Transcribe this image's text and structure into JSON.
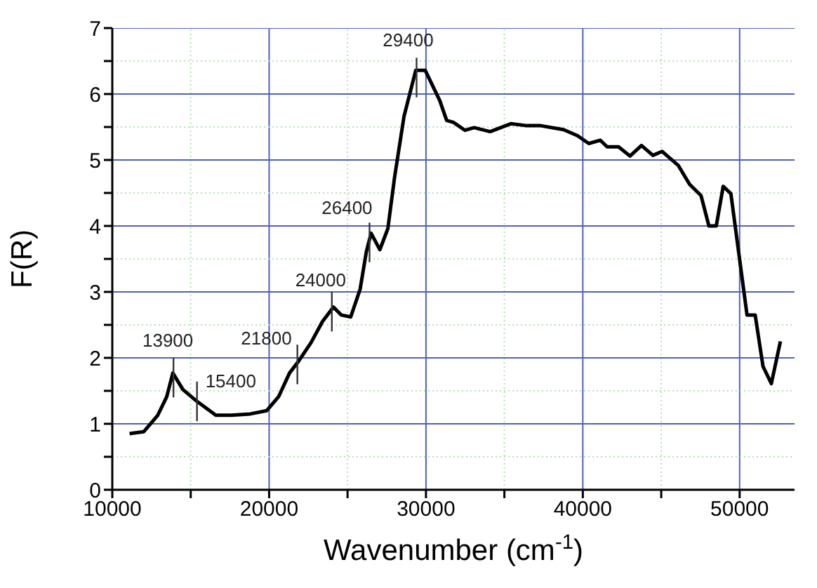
{
  "chart_data": {
    "type": "line",
    "xlabel": "Wavenumber (cm$^{-1}$)",
    "ylabel": "F(R)",
    "x": [
      11100,
      12000,
      12900,
      13470,
      13860,
      14500,
      15400,
      16600,
      17600,
      18800,
      19850,
      20600,
      21300,
      21850,
      22670,
      23400,
      24100,
      24600,
      25200,
      25800,
      26200,
      26500,
      27060,
      27570,
      28000,
      28600,
      29350,
      29950,
      30880,
      31320,
      31750,
      32490,
      33070,
      34090,
      35410,
      36430,
      37310,
      38770,
      39650,
      40380,
      41110,
      41550,
      42280,
      43010,
      43740,
      44470,
      45060,
      46080,
      46810,
      47540,
      48040,
      48510,
      48950,
      49440,
      50470,
      50990,
      51490,
      52020,
      52600
    ],
    "series": [
      {
        "color": "#000000",
        "values": [
          0.85,
          0.88,
          1.13,
          1.41,
          1.77,
          1.52,
          1.34,
          1.13,
          1.13,
          1.15,
          1.2,
          1.41,
          1.77,
          1.94,
          2.23,
          2.55,
          2.77,
          2.65,
          2.62,
          3.04,
          3.61,
          3.89,
          3.64,
          3.96,
          4.74,
          5.66,
          6.36,
          6.36,
          5.9,
          5.6,
          5.57,
          5.45,
          5.49,
          5.43,
          5.55,
          5.52,
          5.52,
          5.46,
          5.37,
          5.25,
          5.3,
          5.2,
          5.2,
          5.06,
          5.22,
          5.07,
          5.13,
          4.92,
          4.63,
          4.46,
          4.0,
          4.0,
          4.6,
          4.49,
          2.65,
          2.65,
          1.87,
          1.61,
          2.25
        ]
      }
    ],
    "xlim": [
      10000,
      53500
    ],
    "ylim": [
      0,
      7
    ],
    "xticks": [
      10000,
      {
        "value": 15000,
        "label": null
      },
      20000,
      {
        "value": 25000,
        "label": null
      },
      30000,
      {
        "value": 35000,
        "label": null
      },
      40000,
      {
        "value": 45000,
        "label": null
      },
      50000
    ],
    "yticks": [
      0,
      {
        "value": 0.5,
        "label": null
      },
      1,
      {
        "value": 1.5,
        "label": null
      },
      2,
      {
        "value": 2.5,
        "label": null
      },
      3,
      {
        "value": 3.5,
        "label": null
      },
      4,
      {
        "value": 4.5,
        "label": null
      },
      5,
      {
        "value": 5.5,
        "label": null
      },
      6,
      {
        "value": 6.5,
        "label": null
      },
      7
    ],
    "grid": true,
    "marker": "none",
    "line_style": "solid",
    "annotations": [
      {
        "text": "13900",
        "x": 13900,
        "y": 1.7
      },
      {
        "text": "15400",
        "x": 15400,
        "y": 1.34
      },
      {
        "text": "21800",
        "x": 21800,
        "y": 1.9
      },
      {
        "text": "24000",
        "x": 24000,
        "y": 2.7
      },
      {
        "text": "26400",
        "x": 26400,
        "y": 3.75
      },
      {
        "text": "29400",
        "x": 29400,
        "y": 6.25
      }
    ]
  }
}
